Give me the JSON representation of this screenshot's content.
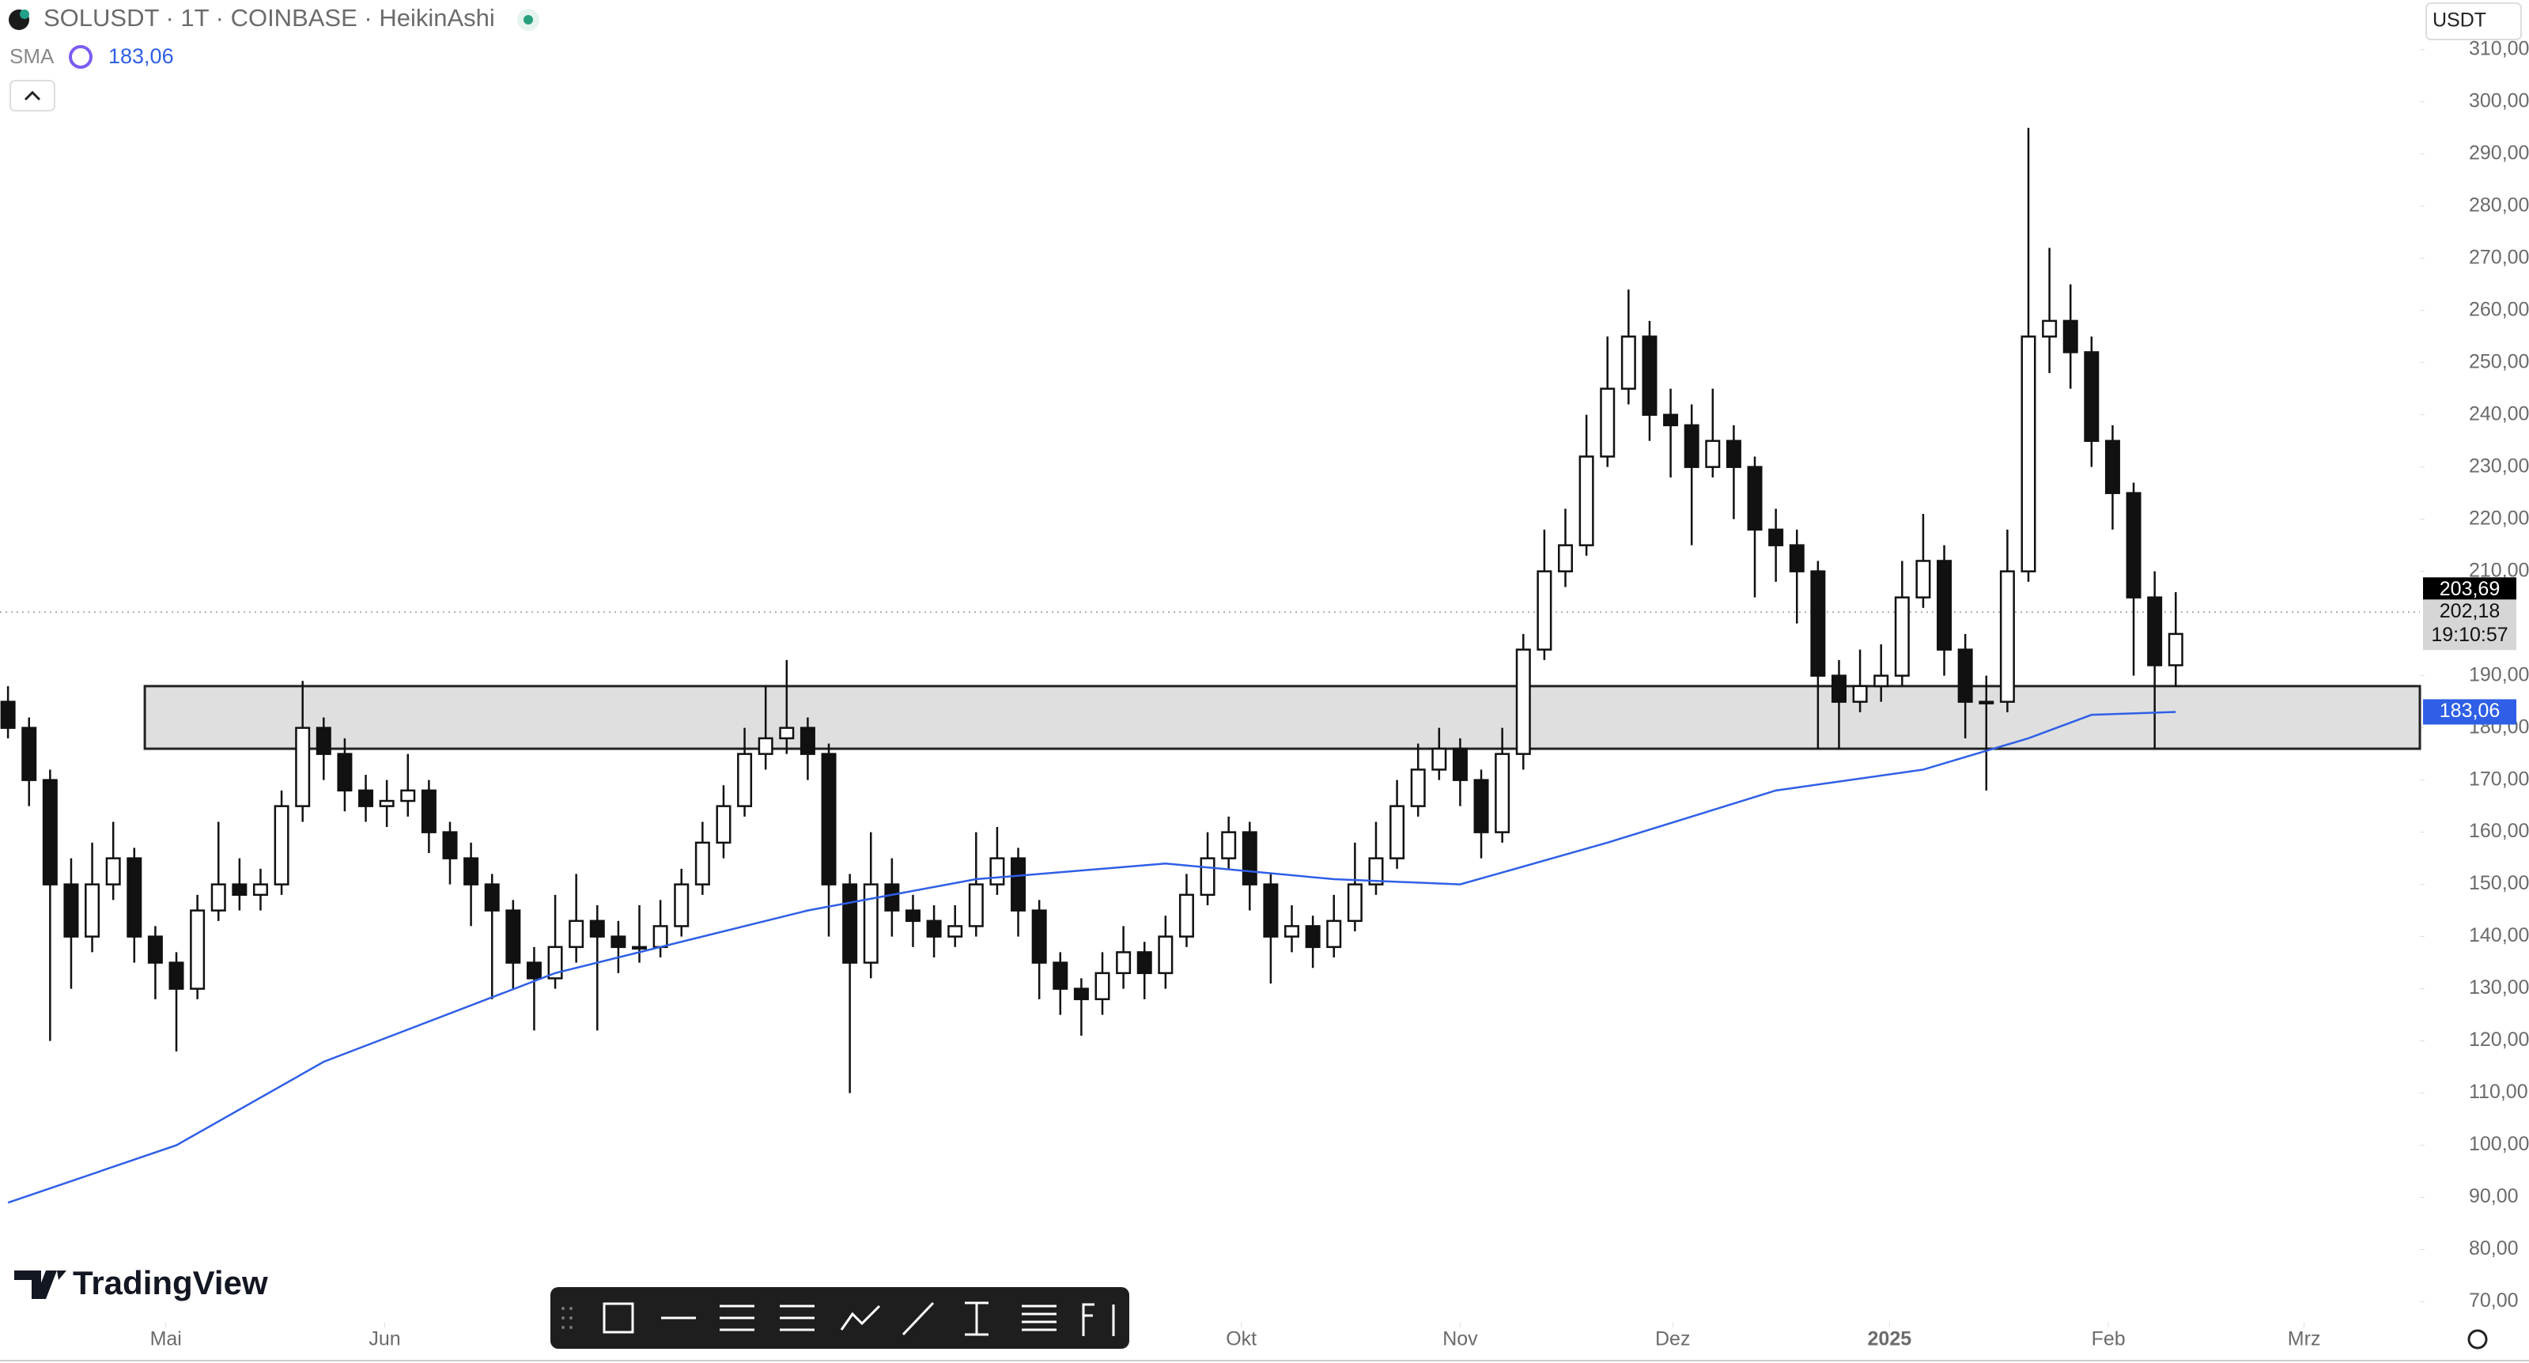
{
  "header": {
    "symbol": "SOLUSDT · 1T · COINBASE · HeikinAshi",
    "indicator": "SMA",
    "currency": "USDT",
    "brand": "TradingView"
  },
  "chart_data": {
    "type": "candlestick",
    "candles": [
      [
        185,
        188,
        178,
        180
      ],
      [
        180,
        182,
        165,
        170
      ],
      [
        170,
        172,
        120,
        150
      ],
      [
        150,
        155,
        130,
        140
      ],
      [
        140,
        158,
        137,
        150
      ],
      [
        150,
        162,
        147,
        155
      ],
      [
        155,
        157,
        135,
        140
      ],
      [
        140,
        142,
        128,
        135
      ],
      [
        135,
        137,
        118,
        130
      ],
      [
        130,
        148,
        128,
        145
      ],
      [
        145,
        162,
        143,
        150
      ],
      [
        150,
        155,
        145,
        148
      ],
      [
        148,
        153,
        145,
        150
      ],
      [
        150,
        168,
        148,
        165
      ],
      [
        165,
        189,
        162,
        180
      ],
      [
        180,
        182,
        170,
        175
      ],
      [
        175,
        178,
        164,
        168
      ],
      [
        168,
        171,
        162,
        165
      ],
      [
        165,
        170,
        161,
        166
      ],
      [
        166,
        175,
        163,
        168
      ],
      [
        168,
        170,
        156,
        160
      ],
      [
        160,
        162,
        150,
        155
      ],
      [
        155,
        158,
        142,
        150
      ],
      [
        150,
        152,
        128,
        145
      ],
      [
        145,
        147,
        130,
        135
      ],
      [
        135,
        138,
        122,
        132
      ],
      [
        132,
        148,
        130,
        138
      ],
      [
        138,
        152,
        135,
        143
      ],
      [
        143,
        146,
        122,
        140
      ],
      [
        140,
        143,
        133,
        138
      ],
      [
        138,
        146,
        135,
        138
      ],
      [
        138,
        147,
        136,
        142
      ],
      [
        142,
        153,
        140,
        150
      ],
      [
        150,
        162,
        148,
        158
      ],
      [
        158,
        169,
        155,
        165
      ],
      [
        165,
        180,
        163,
        175
      ],
      [
        175,
        188,
        172,
        178
      ],
      [
        178,
        193,
        175,
        180
      ],
      [
        180,
        182,
        170,
        175
      ],
      [
        175,
        177,
        140,
        150
      ],
      [
        150,
        152,
        110,
        135
      ],
      [
        135,
        160,
        132,
        150
      ],
      [
        150,
        155,
        140,
        145
      ],
      [
        145,
        148,
        138,
        143
      ],
      [
        143,
        146,
        136,
        140
      ],
      [
        140,
        146,
        138,
        142
      ],
      [
        142,
        160,
        140,
        150
      ],
      [
        150,
        161,
        148,
        155
      ],
      [
        155,
        157,
        140,
        145
      ],
      [
        145,
        147,
        128,
        135
      ],
      [
        135,
        137,
        125,
        130
      ],
      [
        130,
        132,
        121,
        128
      ],
      [
        128,
        137,
        125,
        133
      ],
      [
        133,
        142,
        130,
        137
      ],
      [
        137,
        139,
        128,
        133
      ],
      [
        133,
        144,
        130,
        140
      ],
      [
        140,
        152,
        138,
        148
      ],
      [
        148,
        160,
        146,
        155
      ],
      [
        155,
        163,
        153,
        160
      ],
      [
        160,
        162,
        145,
        150
      ],
      [
        150,
        152,
        131,
        140
      ],
      [
        140,
        146,
        137,
        142
      ],
      [
        142,
        144,
        134,
        138
      ],
      [
        138,
        148,
        136,
        143
      ],
      [
        143,
        158,
        141,
        150
      ],
      [
        150,
        162,
        148,
        155
      ],
      [
        155,
        170,
        153,
        165
      ],
      [
        165,
        177,
        163,
        172
      ],
      [
        172,
        180,
        170,
        176
      ],
      [
        176,
        178,
        165,
        170
      ],
      [
        170,
        172,
        155,
        160
      ],
      [
        160,
        180,
        158,
        175
      ],
      [
        175,
        198,
        172,
        195
      ],
      [
        195,
        218,
        193,
        210
      ],
      [
        210,
        222,
        207,
        215
      ],
      [
        215,
        240,
        213,
        232
      ],
      [
        232,
        255,
        230,
        245
      ],
      [
        245,
        264,
        242,
        255
      ],
      [
        255,
        258,
        235,
        240
      ],
      [
        240,
        245,
        228,
        238
      ],
      [
        238,
        242,
        215,
        230
      ],
      [
        230,
        245,
        228,
        235
      ],
      [
        235,
        238,
        220,
        230
      ],
      [
        230,
        232,
        205,
        218
      ],
      [
        218,
        222,
        208,
        215
      ],
      [
        215,
        218,
        200,
        210
      ],
      [
        210,
        212,
        176,
        190
      ],
      [
        190,
        193,
        176,
        185
      ],
      [
        185,
        195,
        183,
        188
      ],
      [
        188,
        196,
        185,
        190
      ],
      [
        190,
        212,
        188,
        205
      ],
      [
        205,
        221,
        203,
        212
      ],
      [
        212,
        215,
        190,
        195
      ],
      [
        195,
        198,
        178,
        185
      ],
      [
        185,
        190,
        168,
        185
      ],
      [
        185,
        218,
        183,
        210
      ],
      [
        210,
        295,
        208,
        255
      ],
      [
        255,
        272,
        248,
        258
      ],
      [
        258,
        265,
        245,
        252
      ],
      [
        252,
        255,
        230,
        235
      ],
      [
        235,
        238,
        218,
        225
      ],
      [
        225,
        227,
        190,
        205
      ],
      [
        205,
        210,
        176,
        192
      ],
      [
        192,
        206,
        188,
        198
      ]
    ],
    "sma": {
      "name": "SMA",
      "color": "#2f5fe6",
      "x": [
        0,
        8,
        15,
        26,
        38,
        46,
        55,
        63,
        69,
        76,
        84,
        91,
        96,
        99,
        103
      ],
      "values": [
        89,
        100,
        116,
        133,
        145,
        151,
        154,
        151,
        150,
        158,
        168,
        172,
        178,
        182.5,
        183.06
      ]
    },
    "zone": {
      "ylim": [
        176,
        188
      ],
      "start": 6.5
    },
    "ylim": [
      66,
      319.5
    ],
    "xlim": [
      -0.38,
      114.6
    ],
    "yticks": [
      {
        "value": 70,
        "label": "70,00"
      },
      {
        "value": 80,
        "label": "80,00"
      },
      {
        "value": 90,
        "label": "90,00"
      },
      {
        "value": 100,
        "label": "100,00"
      },
      {
        "value": 110,
        "label": "110,00"
      },
      {
        "value": 120,
        "label": "120,00"
      },
      {
        "value": 130,
        "label": "130,00"
      },
      {
        "value": 140,
        "label": "140,00"
      },
      {
        "value": 150,
        "label": "150,00"
      },
      {
        "value": 160,
        "label": "160,00"
      },
      {
        "value": 170,
        "label": "170,00"
      },
      {
        "value": 180,
        "label": "180,00"
      },
      {
        "value": 190,
        "label": "190,00"
      },
      {
        "value": 210,
        "label": "210,00"
      },
      {
        "value": 220,
        "label": "220,00"
      },
      {
        "value": 230,
        "label": "230,00"
      },
      {
        "value": 240,
        "label": "240,00"
      },
      {
        "value": 250,
        "label": "250,00"
      },
      {
        "value": 260,
        "label": "260,00"
      },
      {
        "value": 270,
        "label": "270,00"
      },
      {
        "value": 280,
        "label": "280,00"
      },
      {
        "value": 290,
        "label": "290,00"
      },
      {
        "value": 300,
        "label": "300,00"
      },
      {
        "value": 310,
        "label": "310,00"
      }
    ],
    "xticks": [
      {
        "value": 7.5,
        "label": "Mai"
      },
      {
        "value": 17.9,
        "label": "Jun"
      },
      {
        "value": 58.6,
        "label": "Okt"
      },
      {
        "value": 69,
        "label": "Nov"
      },
      {
        "value": 79.1,
        "label": "Dez"
      },
      {
        "value": 89.4,
        "label": "2025"
      },
      {
        "value": 99.8,
        "label": "Feb"
      },
      {
        "value": 109.1,
        "label": "Mrz"
      }
    ],
    "price_tags": [
      {
        "value": 203.69,
        "label": "203,69",
        "color": "#000000"
      },
      {
        "value": 202.18,
        "label": "202,18",
        "countdown": "19:10:57",
        "color": "#d6d6d6"
      },
      {
        "value": 183.06,
        "label": "183,06",
        "color": "#2f5fe6"
      }
    ]
  }
}
